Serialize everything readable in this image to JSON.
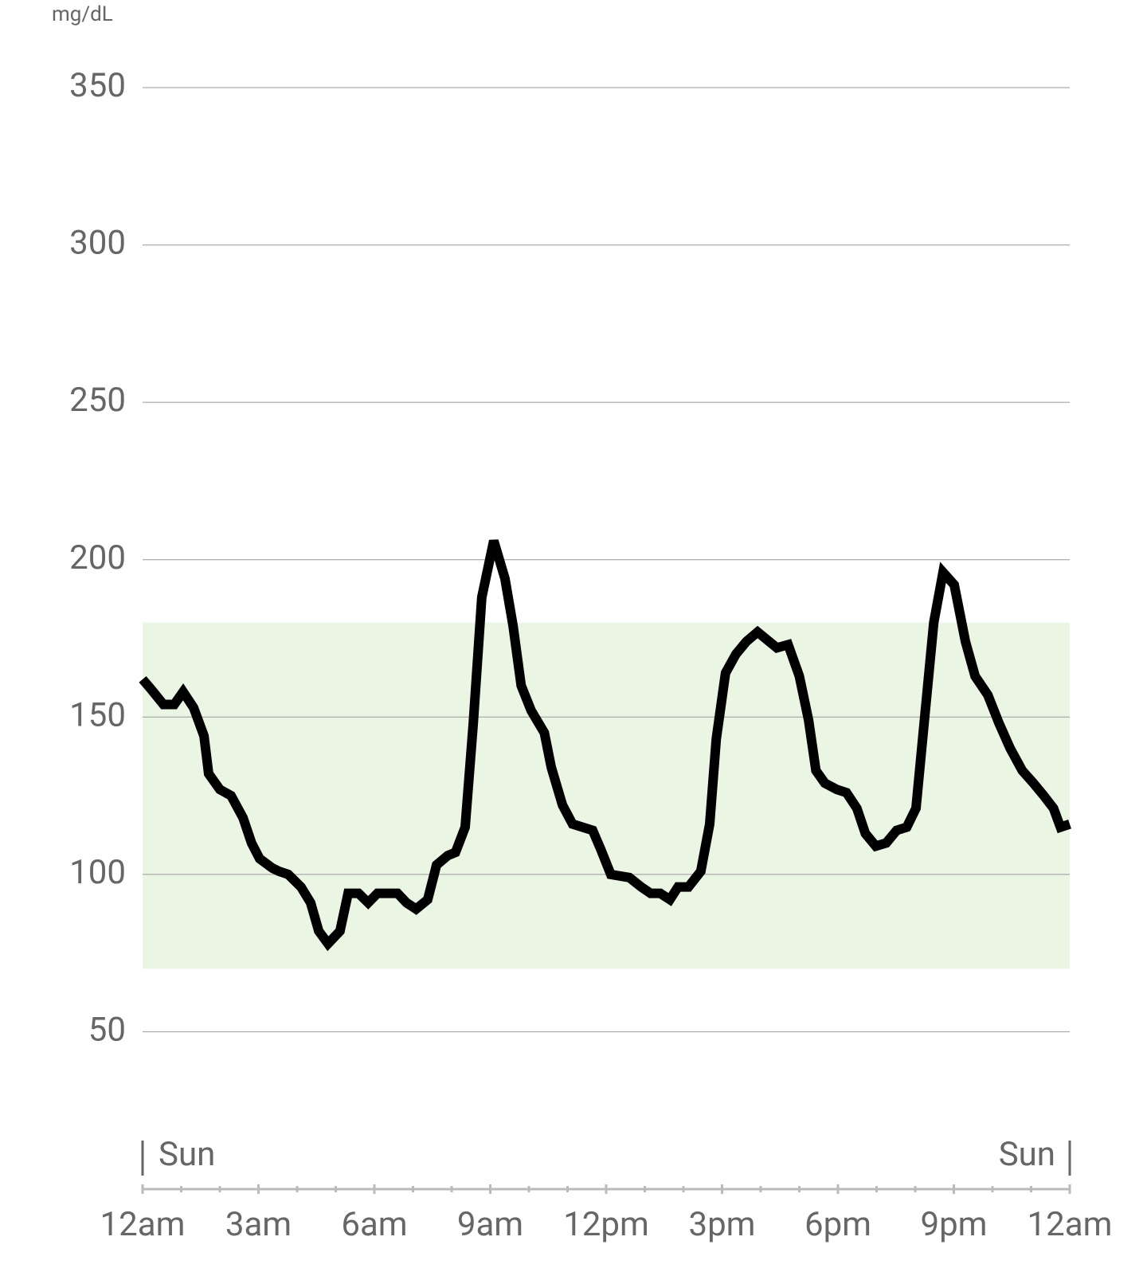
{
  "chart_data": {
    "type": "line",
    "y_unit": "mg/dL",
    "x": [
      0,
      0.21,
      0.54,
      0.82,
      1.05,
      1.32,
      1.59,
      1.71,
      2.0,
      2.29,
      2.6,
      2.82,
      3.03,
      3.36,
      3.53,
      3.77,
      4.1,
      4.35,
      4.56,
      4.8,
      5.11,
      5.32,
      5.59,
      5.84,
      6.08,
      6.6,
      6.83,
      7.08,
      7.38,
      7.61,
      7.9,
      8.1,
      8.35,
      8.56,
      8.78,
      9.09,
      9.38,
      9.59,
      9.8,
      10.06,
      10.4,
      10.58,
      10.87,
      11.13,
      11.65,
      11.86,
      12.12,
      12.6,
      12.91,
      13.15,
      13.4,
      13.65,
      13.86,
      14.13,
      14.45,
      14.68,
      14.85,
      15.09,
      15.36,
      15.63,
      15.92,
      16.42,
      16.71,
      17.0,
      17.24,
      17.43,
      17.66,
      17.97,
      18.22,
      18.49,
      18.71,
      18.98,
      19.25,
      19.52,
      19.78,
      20.02,
      20.23,
      20.48,
      20.72,
      21.01,
      21.3,
      21.55,
      21.88,
      22.17,
      22.46,
      22.77,
      23.06,
      23.33,
      23.58,
      23.76,
      24.0
    ],
    "series": [
      {
        "color": "#000000",
        "values": [
          162,
          159,
          154,
          154,
          158,
          153,
          144,
          132,
          127,
          125,
          118,
          110,
          105,
          102,
          101,
          100,
          96,
          91,
          82,
          78,
          82,
          94,
          94,
          91,
          94,
          94,
          91,
          89,
          92,
          103,
          106,
          107,
          115,
          148,
          188,
          206,
          194,
          179,
          160,
          152,
          145,
          134,
          122,
          116,
          114,
          108,
          100,
          99,
          96,
          94,
          94,
          92,
          96,
          96,
          101,
          116,
          143,
          164,
          170,
          174,
          177,
          172,
          173,
          163,
          149,
          133,
          129,
          127,
          126,
          121,
          113,
          109,
          110,
          114,
          115,
          121,
          148,
          180,
          196,
          192,
          174,
          163,
          157,
          148,
          140,
          133,
          129,
          125,
          121,
          115,
          116
        ]
      }
    ],
    "target_range": [
      70,
      180
    ],
    "target_color": "#ebf5e4",
    "xlim": [
      0,
      24
    ],
    "xticks": [
      {
        "value": 0,
        "label": "12am"
      },
      {
        "value": 3,
        "label": "3am"
      },
      {
        "value": 6,
        "label": "6am"
      },
      {
        "value": 9,
        "label": "9am"
      },
      {
        "value": 12,
        "label": "12pm"
      },
      {
        "value": 15,
        "label": "3pm"
      },
      {
        "value": 18,
        "label": "6pm"
      },
      {
        "value": 21,
        "label": "9pm"
      },
      {
        "value": 24,
        "label": "12am"
      }
    ],
    "day_labels": [
      {
        "value": 0,
        "label": "Sun"
      },
      {
        "value": 24,
        "label": "Sun"
      }
    ],
    "ylim": [
      0,
      350
    ],
    "yticks": [
      50,
      100,
      150,
      200,
      250,
      300,
      350
    ],
    "grid": true
  }
}
